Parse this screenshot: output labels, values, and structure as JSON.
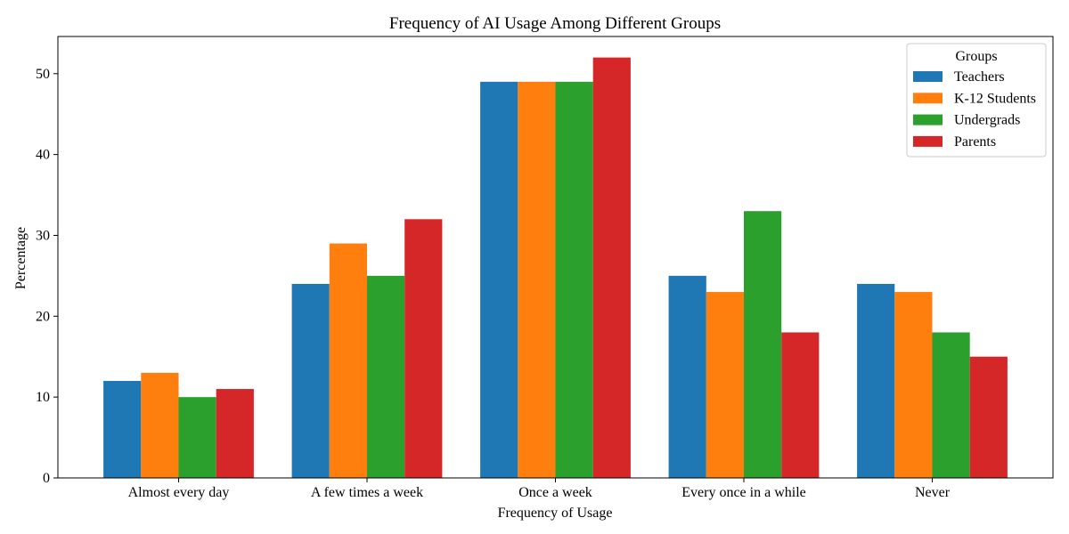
{
  "chart_data": {
    "type": "bar",
    "title": "Frequency of AI Usage Among Different Groups",
    "xlabel": "Frequency of Usage",
    "ylabel": "Percentage",
    "categories": [
      "Almost every day",
      "A few times a week",
      "Once a week",
      "Every once in a while",
      "Never"
    ],
    "series": [
      {
        "name": "Teachers",
        "values": [
          12,
          24,
          49,
          25,
          24
        ],
        "color": "#1f77b4"
      },
      {
        "name": "K-12 Students",
        "values": [
          13,
          29,
          49,
          23,
          23
        ],
        "color": "#ff7f0e"
      },
      {
        "name": "Undergrads",
        "values": [
          10,
          25,
          49,
          33,
          18
        ],
        "color": "#2ca02c"
      },
      {
        "name": "Parents",
        "values": [
          11,
          32,
          52,
          18,
          15
        ],
        "color": "#d62728"
      }
    ],
    "ylim": [
      0,
      54.6
    ],
    "yticks": [
      0,
      10,
      20,
      30,
      40,
      50
    ],
    "grid": false,
    "legend": {
      "title": "Groups",
      "placement": "top-right"
    }
  }
}
